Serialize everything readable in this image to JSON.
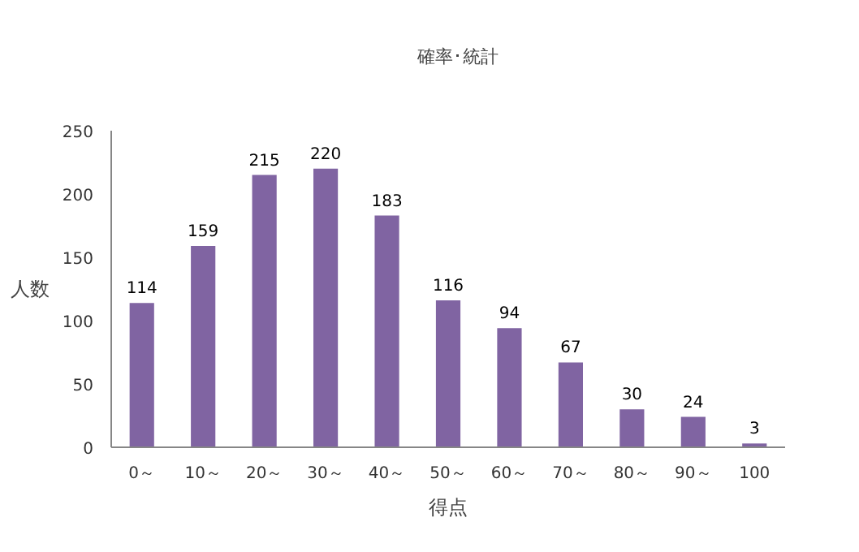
{
  "chart_data": {
    "type": "bar",
    "xlabel": "得点",
    "ylabel": "人数",
    "categories": [
      "0～",
      "10～",
      "20～",
      "30～",
      "40～",
      "50～",
      "60～",
      "70～",
      "80～",
      "90～",
      "100"
    ],
    "series": [
      {
        "name": "確率･統計",
        "color": "#8064a2",
        "values": [
          114,
          159,
          215,
          220,
          183,
          116,
          94,
          67,
          30,
          24,
          3
        ]
      }
    ],
    "ylim": [
      0,
      250
    ],
    "yticks": [
      0,
      50,
      100,
      150,
      200,
      250
    ],
    "grid": false,
    "legend": "top",
    "data_labels": true
  }
}
